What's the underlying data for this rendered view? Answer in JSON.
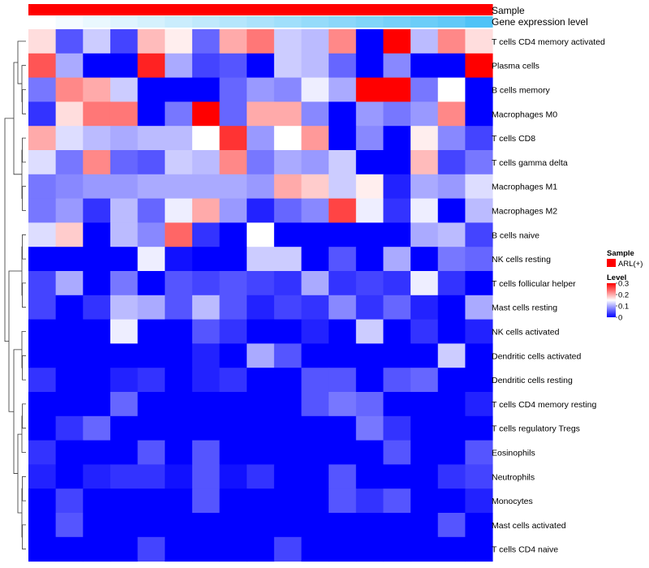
{
  "chart_data": {
    "type": "heatmap",
    "annotation_labels": [
      "Sample",
      "Gene expression level"
    ],
    "rows": [
      "T cells CD4 memory activated",
      "Plasma cells",
      "B cells memory",
      "Macrophages M0",
      "T cells CD8",
      "T cells gamma delta",
      "Macrophages M1",
      "Macrophages M2",
      "B cells naive",
      "NK cells resting",
      "T cells follicular helper",
      "Mast cells resting",
      "NK cells activated",
      "Dendritic cells activated",
      "Dendritic cells resting",
      "T cells CD4 memory resting",
      "T cells regulatory  Tregs",
      "Eosinophils",
      "Neutrophils",
      "Monocytes",
      "Mast cells activated",
      "T cells CD4 naive"
    ],
    "n_columns": 17,
    "values": [
      [
        0.17,
        0.05,
        0.12,
        0.04,
        0.19,
        0.16,
        0.06,
        0.2,
        0.23,
        0.12,
        0.11,
        0.22,
        0.0,
        0.3,
        0.11,
        0.22,
        0.17
      ],
      [
        0.25,
        0.1,
        0.0,
        0.0,
        0.28,
        0.1,
        0.04,
        0.05,
        0.0,
        0.12,
        0.11,
        0.06,
        0.0,
        0.08,
        0.0,
        0.0,
        0.3
      ],
      [
        0.07,
        0.22,
        0.2,
        0.12,
        0.0,
        0.0,
        0.0,
        0.06,
        0.09,
        0.08,
        0.14,
        0.1,
        0.3,
        0.3,
        0.07,
        0.15,
        0.0
      ],
      [
        0.03,
        0.17,
        0.23,
        0.23,
        0.0,
        0.07,
        0.3,
        0.06,
        0.2,
        0.2,
        0.08,
        0.0,
        0.09,
        0.07,
        0.09,
        0.22,
        0.0
      ],
      [
        0.2,
        0.13,
        0.11,
        0.1,
        0.11,
        0.11,
        0.15,
        0.27,
        0.09,
        0.15,
        0.21,
        0.0,
        0.08,
        0.0,
        0.16,
        0.08,
        0.04
      ],
      [
        0.13,
        0.07,
        0.22,
        0.06,
        0.05,
        0.12,
        0.11,
        0.22,
        0.07,
        0.1,
        0.09,
        0.12,
        0.0,
        0.0,
        0.19,
        0.04,
        0.07
      ],
      [
        0.07,
        0.08,
        0.09,
        0.09,
        0.1,
        0.1,
        0.1,
        0.1,
        0.09,
        0.2,
        0.18,
        0.12,
        0.16,
        0.02,
        0.1,
        0.09,
        0.13
      ],
      [
        0.07,
        0.09,
        0.03,
        0.11,
        0.06,
        0.14,
        0.2,
        0.09,
        0.02,
        0.06,
        0.08,
        0.26,
        0.14,
        0.03,
        0.14,
        0.0,
        0.11
      ],
      [
        0.13,
        0.18,
        0.0,
        0.11,
        0.08,
        0.24,
        0.03,
        0.0,
        0.15,
        0.0,
        0.0,
        0.0,
        0.0,
        0.0,
        0.1,
        0.11,
        0.04
      ],
      [
        0.0,
        0.0,
        0.0,
        0.0,
        0.14,
        0.01,
        0.0,
        0.0,
        0.12,
        0.12,
        0.0,
        0.05,
        0.0,
        0.1,
        0.0,
        0.07,
        0.06
      ],
      [
        0.04,
        0.1,
        0.0,
        0.07,
        0.0,
        0.05,
        0.04,
        0.05,
        0.04,
        0.03,
        0.1,
        0.03,
        0.04,
        0.03,
        0.14,
        0.03,
        0.0
      ],
      [
        0.04,
        0.0,
        0.03,
        0.11,
        0.1,
        0.05,
        0.11,
        0.05,
        0.02,
        0.04,
        0.03,
        0.08,
        0.03,
        0.06,
        0.02,
        0.0,
        0.1
      ],
      [
        0.0,
        0.0,
        0.0,
        0.14,
        0.0,
        0.0,
        0.05,
        0.03,
        0.0,
        0.0,
        0.02,
        0.0,
        0.12,
        0.0,
        0.03,
        0.0,
        0.02
      ],
      [
        0.0,
        0.0,
        0.0,
        0.0,
        0.0,
        0.0,
        0.02,
        0.0,
        0.1,
        0.05,
        0.0,
        0.0,
        0.0,
        0.0,
        0.0,
        0.12,
        0.0
      ],
      [
        0.03,
        0.0,
        0.0,
        0.02,
        0.03,
        0.0,
        0.02,
        0.03,
        0.0,
        0.0,
        0.05,
        0.05,
        0.0,
        0.05,
        0.06,
        0.0,
        0.0
      ],
      [
        0.0,
        0.0,
        0.0,
        0.06,
        0.0,
        0.0,
        0.0,
        0.0,
        0.0,
        0.0,
        0.05,
        0.07,
        0.06,
        0.0,
        0.0,
        0.0,
        0.02
      ],
      [
        0.0,
        0.03,
        0.06,
        0.0,
        0.0,
        0.0,
        0.0,
        0.0,
        0.0,
        0.0,
        0.0,
        0.0,
        0.07,
        0.03,
        0.0,
        0.0,
        0.0
      ],
      [
        0.03,
        0.0,
        0.0,
        0.0,
        0.05,
        0.0,
        0.05,
        0.0,
        0.0,
        0.0,
        0.0,
        0.0,
        0.0,
        0.05,
        0.0,
        0.0,
        0.05
      ],
      [
        0.02,
        0.0,
        0.02,
        0.03,
        0.03,
        0.01,
        0.05,
        0.01,
        0.03,
        0.0,
        0.0,
        0.05,
        0.0,
        0.0,
        0.0,
        0.03,
        0.04
      ],
      [
        0.0,
        0.04,
        0.0,
        0.0,
        0.0,
        0.0,
        0.05,
        0.0,
        0.0,
        0.0,
        0.0,
        0.05,
        0.03,
        0.05,
        0.0,
        0.0,
        0.02
      ],
      [
        0.0,
        0.05,
        0.0,
        0.0,
        0.0,
        0.0,
        0.0,
        0.0,
        0.0,
        0.0,
        0.0,
        0.0,
        0.0,
        0.0,
        0.0,
        0.05,
        0.0
      ],
      [
        0.0,
        0.0,
        0.0,
        0.0,
        0.04,
        0.0,
        0.0,
        0.0,
        0.0,
        0.04,
        0.0,
        0.0,
        0.0,
        0.0,
        0.0,
        0.0,
        0.0
      ]
    ],
    "sample_annotation": {
      "color": "#ff0000",
      "values": [
        "ARL(+)",
        "ARL(+)",
        "ARL(+)",
        "ARL(+)",
        "ARL(+)",
        "ARL(+)",
        "ARL(+)",
        "ARL(+)",
        "ARL(+)",
        "ARL(+)",
        "ARL(+)",
        "ARL(+)",
        "ARL(+)",
        "ARL(+)",
        "ARL(+)",
        "ARL(+)",
        "ARL(+)"
      ]
    },
    "expression_annotation": {
      "low_color": "#ffffff",
      "high_color": "#4fc3f7",
      "relative_levels": [
        0.0,
        0.06,
        0.12,
        0.18,
        0.24,
        0.3,
        0.36,
        0.42,
        0.48,
        0.54,
        0.6,
        0.66,
        0.72,
        0.78,
        0.84,
        0.9,
        1.0
      ]
    },
    "color_scale": {
      "min": 0,
      "mid": 0.15,
      "max": 0.3,
      "low_color": "#0000ff",
      "mid_color": "#ffffff",
      "high_color": "#ff0000"
    },
    "legend": {
      "sample_title": "Sample",
      "sample_entry": "ARL(+)",
      "level_title": "Level",
      "ticks": [
        "0.3",
        "0.2",
        "0.1",
        "0"
      ],
      "tick_values": [
        0.3,
        0.2,
        0.1,
        0
      ],
      "position": "right"
    },
    "dendrogram": "rows-left"
  }
}
